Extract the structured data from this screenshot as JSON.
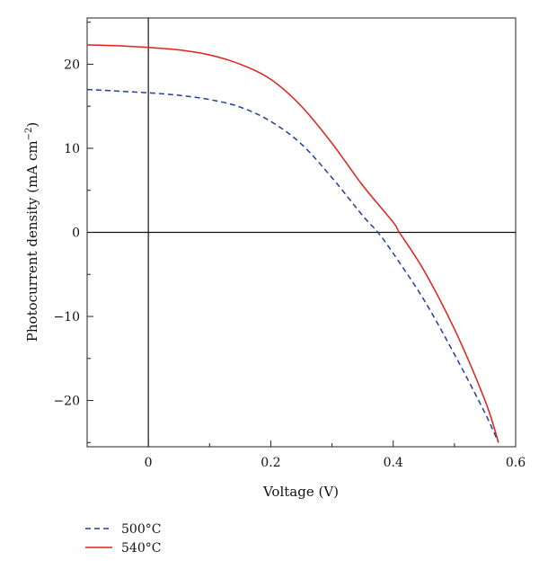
{
  "chart_data": {
    "type": "line",
    "title": "",
    "xlabel": "Voltage (V)",
    "ylabel": "Photocurrent density (mA cm",
    "ylabel_sup": "−2",
    "ylabel_close": ")",
    "xlim": [
      -0.1,
      0.6
    ],
    "ylim": [
      -25.5,
      25.5
    ],
    "x_ticks": [
      0,
      0.2,
      0.4,
      0.6
    ],
    "x_tick_labels": [
      "0",
      "0.2",
      "0.4",
      "0.6"
    ],
    "y_ticks": [
      -20,
      -10,
      0,
      10,
      20
    ],
    "y_tick_labels": [
      "−20",
      "−10",
      "0",
      "10",
      "20"
    ],
    "grid": false,
    "legend_position": "bottom-left",
    "series": [
      {
        "name": "500°C",
        "color": "#1f3f9f",
        "dash": "dashed",
        "x": [
          -0.1,
          -0.05,
          0.0,
          0.05,
          0.1,
          0.15,
          0.2,
          0.25,
          0.3,
          0.35,
          0.375,
          0.4,
          0.45,
          0.5,
          0.55,
          0.572
        ],
        "y": [
          17.0,
          16.8,
          16.6,
          16.3,
          15.8,
          14.9,
          13.2,
          10.5,
          6.5,
          2.0,
          0.0,
          -2.5,
          -8.0,
          -14.5,
          -21.5,
          -25.0
        ]
      },
      {
        "name": "540°C",
        "color": "#e0201b",
        "dash": "solid",
        "x": [
          -0.1,
          -0.05,
          0.0,
          0.05,
          0.1,
          0.15,
          0.2,
          0.25,
          0.3,
          0.35,
          0.4,
          0.41,
          0.45,
          0.5,
          0.55,
          0.572
        ],
        "y": [
          22.3,
          22.2,
          22.0,
          21.7,
          21.1,
          20.0,
          18.2,
          15.0,
          10.6,
          5.6,
          1.2,
          0.0,
          -4.5,
          -11.5,
          -20.0,
          -25.0
        ]
      }
    ]
  }
}
